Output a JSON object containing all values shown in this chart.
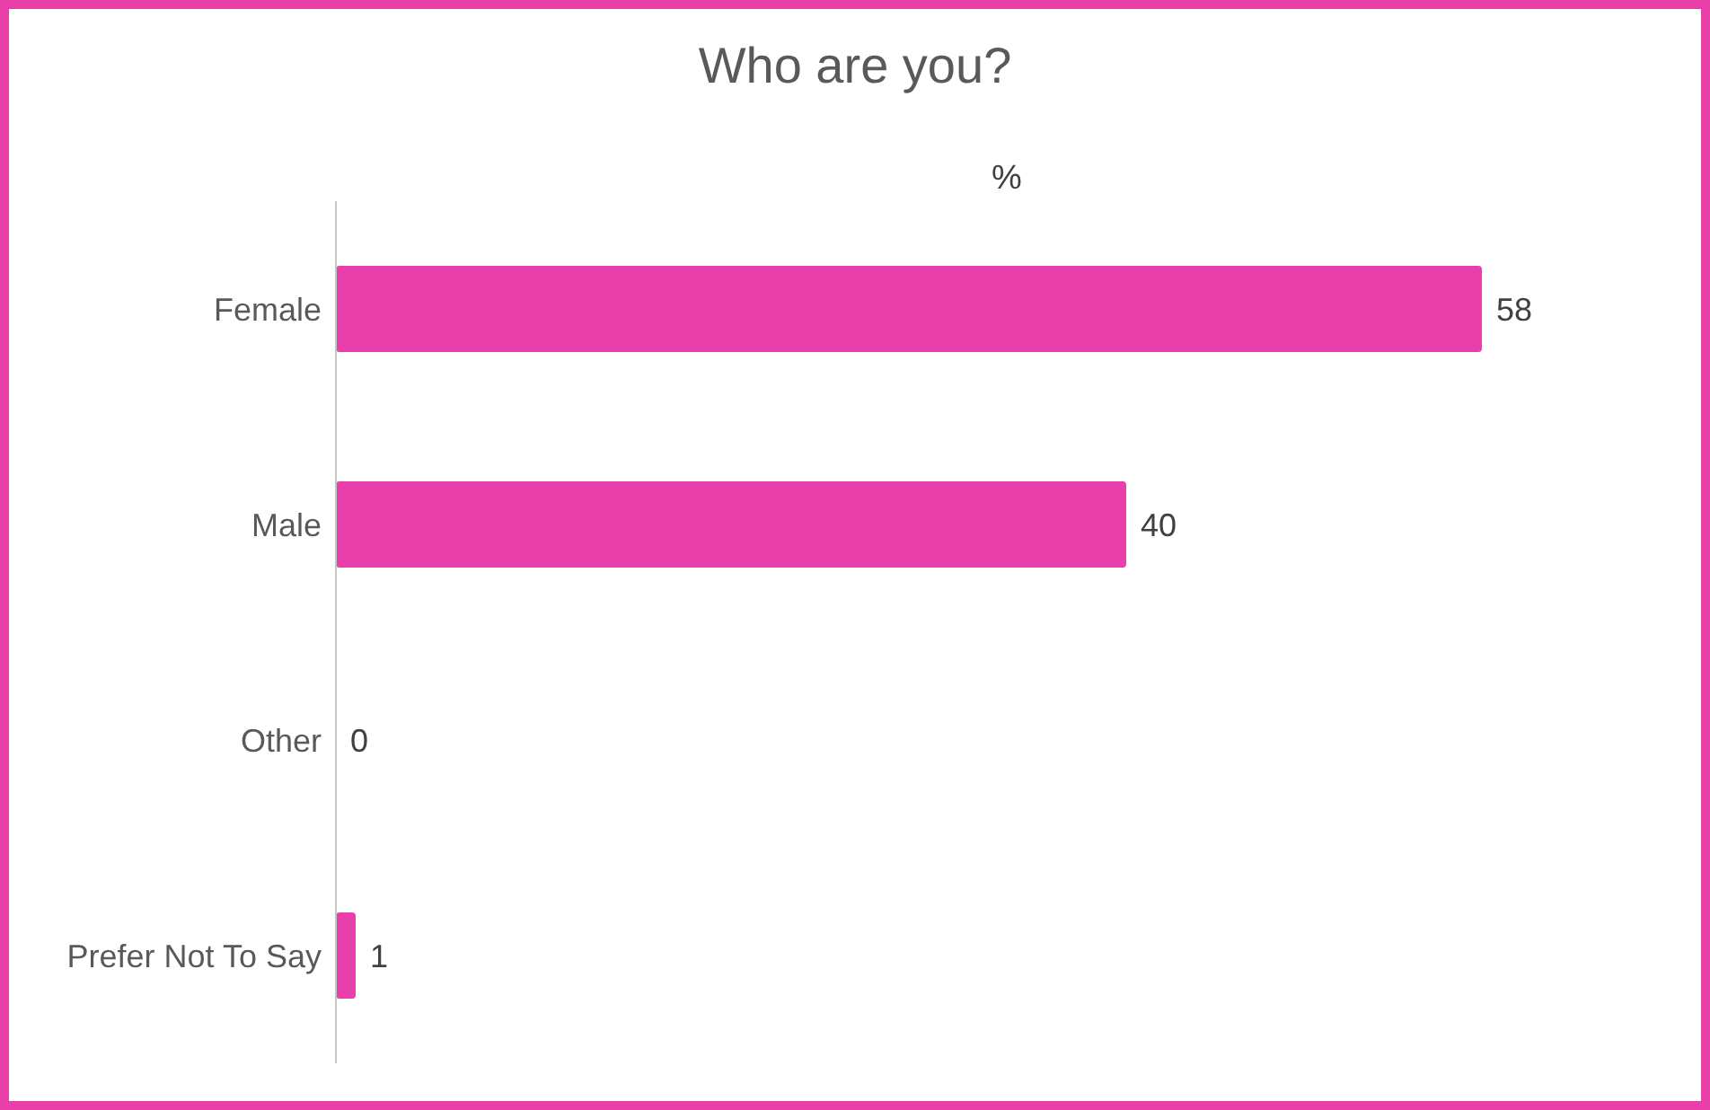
{
  "chart_data": {
    "type": "bar",
    "orientation": "horizontal",
    "title": "Who are you?",
    "xlabel": "%",
    "categories": [
      "Female",
      "Male",
      "Other",
      "Prefer Not To Say"
    ],
    "values": [
      58,
      40,
      0,
      1
    ],
    "color": "#e83fab",
    "data_labels": true
  }
}
